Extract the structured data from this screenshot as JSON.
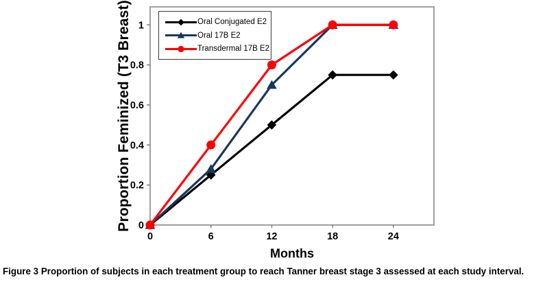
{
  "figure": {
    "caption_prefix": "Figure 3",
    "caption_text": "Proportion of subjects in each treatment group to reach Tanner breast stage 3 assessed at each study interval."
  },
  "chart_data": {
    "type": "line",
    "title": "",
    "xlabel": "Months",
    "ylabel": "Proportion Feminized (T3 Breast)",
    "x": [
      0,
      6,
      12,
      18,
      24
    ],
    "xtick_labels": [
      "0",
      "6",
      "12",
      "18",
      "24"
    ],
    "yticks": [
      0,
      0.2,
      0.4,
      0.6,
      0.8,
      1
    ],
    "ytick_labels": [
      "0",
      "0.2",
      "0.4",
      "0.6",
      "0.8",
      "1"
    ],
    "xlim": [
      0,
      28
    ],
    "ylim": [
      0,
      1.09
    ],
    "grid": false,
    "legend_position": "top-left-inside",
    "axis_color": "#808080",
    "series": [
      {
        "name": "Oral Conjugated E2",
        "color": "#000000",
        "marker": "diamond",
        "values": [
          0,
          0.25,
          0.5,
          0.75,
          0.75
        ]
      },
      {
        "name": "Oral 17B E2",
        "color": "#17375E",
        "marker": "triangle",
        "values": [
          0,
          0.28,
          0.7,
          1.0,
          1.0
        ]
      },
      {
        "name": "Transdermal 17B E2",
        "color": "#FF0000",
        "marker": "circle",
        "values": [
          0,
          0.4,
          0.8,
          1.0,
          1.0
        ]
      }
    ]
  }
}
